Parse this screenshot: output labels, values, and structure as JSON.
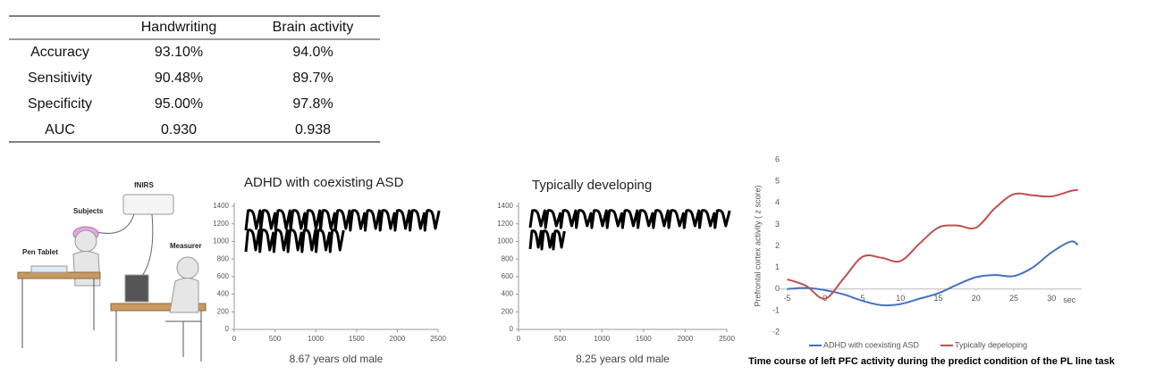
{
  "table": {
    "columns": [
      "Handwriting",
      "Brain activity"
    ],
    "rows": [
      {
        "label": "Accuracy",
        "cells": [
          "93.10%",
          "94.0%"
        ]
      },
      {
        "label": "Sensitivity",
        "cells": [
          "90.48%",
          "89.7%"
        ]
      },
      {
        "label": "Specificity",
        "cells": [
          "95.00%",
          "97.8%"
        ]
      },
      {
        "label": "AUC",
        "cells": [
          "0.930",
          "0.938"
        ]
      }
    ]
  },
  "illustration": {
    "labels": [
      "fNIRS",
      "Subjects",
      "Pen Tablet",
      "Measurer"
    ]
  },
  "chart_data": [
    {
      "type": "handwriting",
      "title": "ADHD with coexisting ASD",
      "x_label": "8.67 years old male",
      "xlim": [
        0,
        2500
      ],
      "xticks": [
        0,
        500,
        1000,
        1500,
        2000,
        2500
      ],
      "ylim": [
        0,
        1400
      ],
      "yticks": [
        0,
        200,
        400,
        600,
        800,
        1000,
        1200,
        1400
      ]
    },
    {
      "type": "handwriting",
      "title": "Typically developing",
      "x_label": "8.25 years old male",
      "xlim": [
        0,
        2500
      ],
      "xticks": [
        0,
        500,
        1000,
        1500,
        2000,
        2500
      ],
      "ylim": [
        0,
        1400
      ],
      "yticks": [
        0,
        200,
        400,
        600,
        800,
        1000,
        1200,
        1400
      ]
    },
    {
      "type": "line",
      "title": "Time course of left PFC activity during the predict condition of the PL line task",
      "y_label": "Prefrontal cortex activity ( z score)",
      "x_unit": "sec",
      "x": [
        -5,
        -2.5,
        0,
        2.5,
        5,
        7.5,
        10,
        12.5,
        15,
        17.5,
        20,
        22.5,
        25,
        27.5,
        30,
        32.5,
        33.5
      ],
      "xlim": [
        -6,
        34
      ],
      "xticks": [
        -5,
        0,
        5,
        10,
        15,
        20,
        25,
        30
      ],
      "ylim": [
        -2,
        6
      ],
      "yticks": [
        -2,
        -1,
        0,
        1,
        2,
        3,
        4,
        5,
        6
      ],
      "series": [
        {
          "name": "ADHD with coexisting ASD",
          "color": "#4472c4",
          "values": [
            0,
            0.05,
            -0.05,
            -0.25,
            -0.55,
            -0.75,
            -0.7,
            -0.45,
            -0.2,
            0.2,
            0.55,
            0.65,
            0.6,
            1.0,
            1.7,
            2.2,
            2.05
          ]
        },
        {
          "name": "Typically depeloping",
          "color": "#c0504d",
          "values": [
            0.45,
            0.15,
            -0.45,
            0.5,
            1.5,
            1.45,
            1.3,
            2.1,
            2.85,
            2.95,
            2.85,
            3.75,
            4.4,
            4.35,
            4.3,
            4.55,
            4.6
          ]
        }
      ]
    }
  ]
}
